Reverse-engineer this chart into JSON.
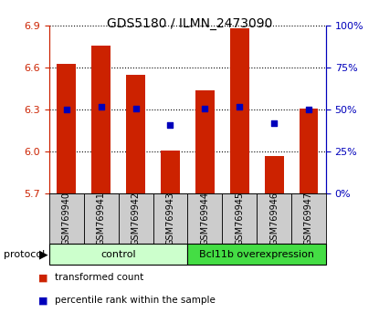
{
  "title": "GDS5180 / ILMN_2473090",
  "samples": [
    "GSM769940",
    "GSM769941",
    "GSM769942",
    "GSM769943",
    "GSM769944",
    "GSM769945",
    "GSM769946",
    "GSM769947"
  ],
  "transformed_counts": [
    6.63,
    6.76,
    6.55,
    6.01,
    6.44,
    6.88,
    5.97,
    6.31
  ],
  "percentile_ranks": [
    50,
    52,
    51,
    41,
    51,
    52,
    42,
    50
  ],
  "ylim_left": [
    5.7,
    6.9
  ],
  "ylim_right": [
    0,
    100
  ],
  "yticks_left": [
    5.7,
    6.0,
    6.3,
    6.6,
    6.9
  ],
  "yticks_right": [
    0,
    25,
    50,
    75,
    100
  ],
  "bar_color": "#cc2200",
  "dot_color": "#0000bb",
  "bar_width": 0.55,
  "background_color": "#ffffff",
  "group_light_color": "#ccffcc",
  "group_dark_color": "#44dd44",
  "sample_box_color": "#cccccc",
  "groups": [
    {
      "label": "control",
      "start": 0,
      "end": 3,
      "color": "#ccffcc"
    },
    {
      "label": "Bcl11b overexpression",
      "start": 4,
      "end": 7,
      "color": "#44dd44"
    }
  ],
  "protocol_label": "protocol",
  "legend": [
    {
      "label": "transformed count",
      "color": "#cc2200"
    },
    {
      "label": "percentile rank within the sample",
      "color": "#0000bb"
    }
  ],
  "title_fontsize": 10,
  "axis_fontsize": 8,
  "sample_fontsize": 7,
  "group_fontsize": 8,
  "legend_fontsize": 7.5
}
